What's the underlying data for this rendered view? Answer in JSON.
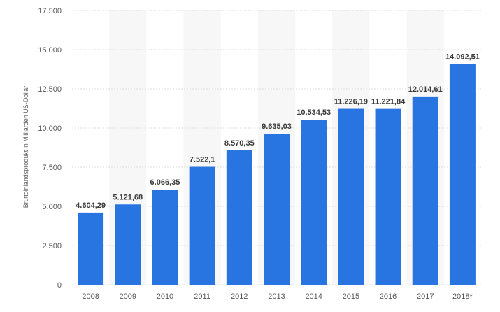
{
  "chart_data": {
    "type": "bar",
    "categories": [
      "2008",
      "2009",
      "2010",
      "2011",
      "2012",
      "2013",
      "2014",
      "2015",
      "2016",
      "2017",
      "2018*"
    ],
    "values": [
      4604.29,
      5121.68,
      6066.35,
      7522.1,
      8570.35,
      9635.03,
      10534.53,
      11226.19,
      11221.84,
      12014.61,
      14092.51
    ],
    "value_labels": [
      "4.604,29",
      "5.121,68",
      "6.066,35",
      "7.522,1",
      "8.570,35",
      "9.635,03",
      "10.534,53",
      "11.226,19",
      "11.221,84",
      "12.014,61",
      "14.092,51"
    ],
    "ylabel": "Bruttoinlandsprodukt in Milliarden US-Dollar",
    "xlabel": "",
    "ylim": [
      0,
      17500
    ],
    "yticks": [
      0,
      2500,
      5000,
      7500,
      10000,
      12500,
      15000,
      17500
    ],
    "ytick_labels": [
      "0",
      "2.500",
      "5.000",
      "7.500",
      "10.000",
      "12.500",
      "15.000",
      "17.500"
    ],
    "grid": true,
    "bar_color": "#2874e0",
    "band_color": "#f7f7f7",
    "grid_color": "#dcdcdc"
  }
}
